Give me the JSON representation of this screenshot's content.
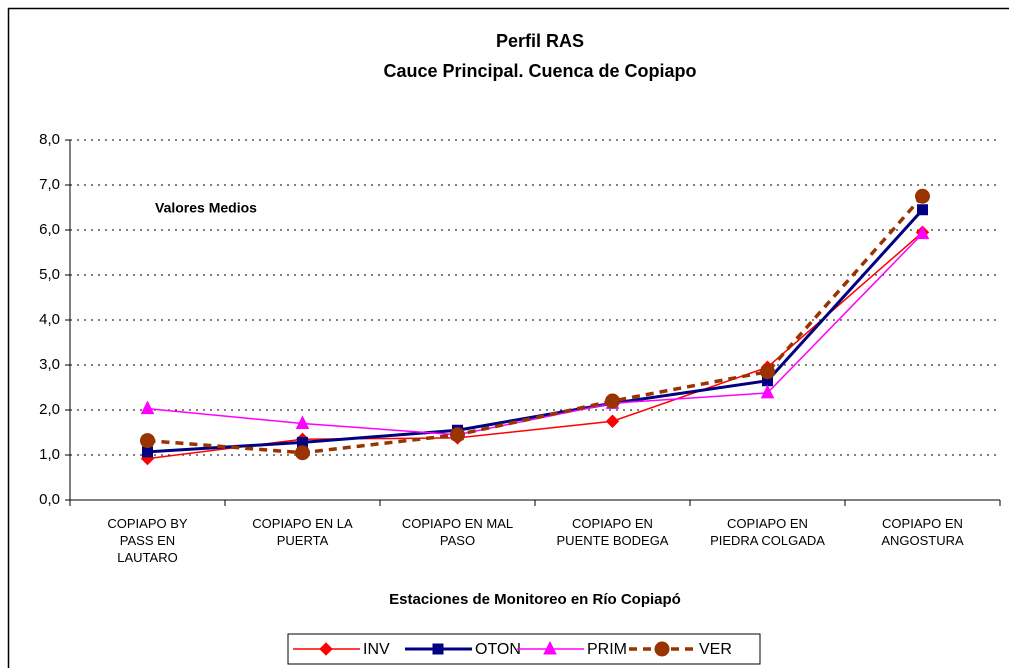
{
  "chart_data": {
    "type": "line",
    "title": "Perfil RAS",
    "subtitle": "Cauce Principal. Cuenca de Copiapo",
    "annotation": "Valores Medios",
    "x_label": "Estaciones de Monitoreo en Río Copiapó",
    "categories": [
      "COPIAPO BY\nPASS EN\nLAUTARO",
      "COPIAPO EN LA\nPUERTA",
      "COPIAPO EN MAL\nPASO",
      "COPIAPO EN\nPUENTE BODEGA",
      "COPIAPO EN\nPIEDRA COLGADA",
      "COPIAPO EN\nANGOSTURA"
    ],
    "series": [
      {
        "name": "INV",
        "color": "#ff0000",
        "marker": "diamond",
        "dashed": false,
        "values": [
          0.92,
          1.35,
          1.38,
          1.75,
          2.95,
          5.95
        ]
      },
      {
        "name": "OTON",
        "color": "#000080",
        "marker": "square",
        "dashed": false,
        "values": [
          1.07,
          1.28,
          1.55,
          2.15,
          2.65,
          6.45
        ]
      },
      {
        "name": "PRIM",
        "color": "#ff00ff",
        "marker": "triangle",
        "dashed": false,
        "values": [
          2.03,
          1.7,
          1.45,
          2.15,
          2.38,
          5.92
        ]
      },
      {
        "name": "VER",
        "color": "#993300",
        "marker": "circle",
        "dashed": true,
        "values": [
          1.32,
          1.05,
          1.45,
          2.2,
          2.85,
          6.75
        ]
      }
    ],
    "ylim": [
      0,
      8
    ],
    "yticks": [
      {
        "value": 0,
        "label": "0,0"
      },
      {
        "value": 1,
        "label": "1,0"
      },
      {
        "value": 2,
        "label": "2,0"
      },
      {
        "value": 3,
        "label": "3,0"
      },
      {
        "value": 4,
        "label": "4,0"
      },
      {
        "value": 5,
        "label": "5,0"
      },
      {
        "value": 6,
        "label": "6,0"
      },
      {
        "value": 7,
        "label": "7,0"
      },
      {
        "value": 8,
        "label": "8,0"
      }
    ],
    "grid": true,
    "legend": "bottom"
  }
}
